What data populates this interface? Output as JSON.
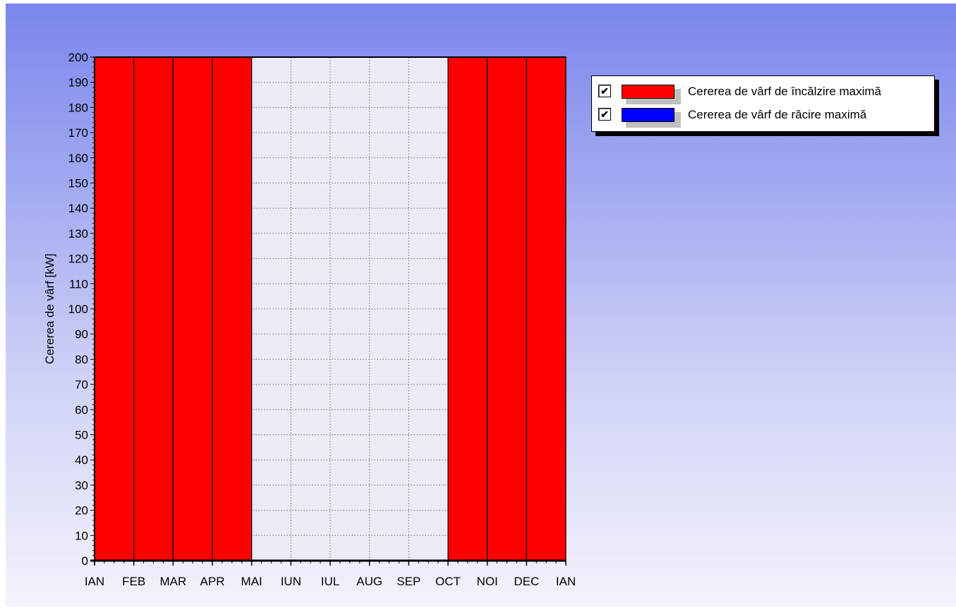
{
  "chart_data": {
    "type": "bar",
    "ylabel": "Cererea de vârf [kW]",
    "xlabel": "",
    "ylim": [
      0,
      200
    ],
    "ytick_step": 10,
    "grid": true,
    "legend_placement": "right",
    "x_tick_labels": [
      "IAN",
      "FEB",
      "MAR",
      "APR",
      "MAI",
      "IUN",
      "IUL",
      "AUG",
      "SEP",
      "OCT",
      "NOI",
      "DEC",
      "IAN"
    ],
    "categories": [
      "IAN",
      "FEB",
      "MAR",
      "APR",
      "MAI",
      "IUN",
      "IUL",
      "AUG",
      "SEP",
      "OCT",
      "NOI",
      "DEC"
    ],
    "series": [
      {
        "name": "Cererea de vârf de încălzire maximă",
        "color": "#ff0000",
        "values": [
          200,
          200,
          200,
          200,
          0,
          0,
          0,
          0,
          0,
          200,
          200,
          200
        ]
      },
      {
        "name": "Cererea de vârf de răcire maximă",
        "color": "#0000ff",
        "values": [
          0,
          0,
          0,
          0,
          0,
          0,
          0,
          0,
          0,
          0,
          0,
          0
        ]
      }
    ]
  },
  "legend": {
    "check_mark": "✔",
    "items": [
      {
        "label": "Cererea de vârf de încălzire maximă",
        "color": "#ff0000",
        "checked": true
      },
      {
        "label": "Cererea de vârf de răcire maximă",
        "color": "#0000ff",
        "checked": true
      }
    ]
  },
  "colors": {
    "plot_background": "#ebebf8",
    "grid": "#8c8c8c",
    "bar_outline": "#000000",
    "background_top": "#7b86ec",
    "background_bottom": "#f3f3fc"
  }
}
